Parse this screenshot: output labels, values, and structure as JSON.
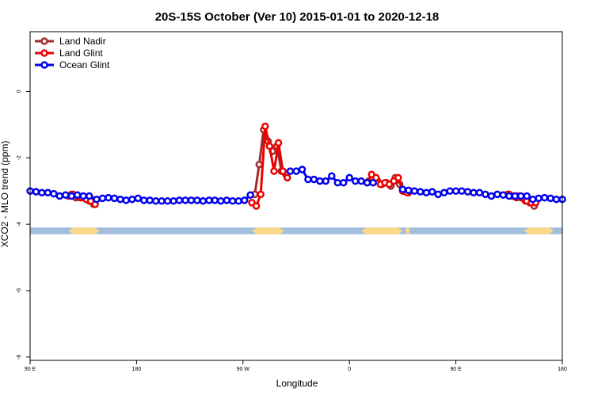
{
  "chart_data": {
    "type": "line",
    "title": "20S-15S October (Ver 10)   2015-01-01 to 2020-12-18",
    "xlabel": "Longitude",
    "ylabel": "XCO2 - MLO trend (ppm)",
    "xlim": [
      -90,
      270
    ],
    "ylim": [
      -8.1,
      1.8
    ],
    "x_ticks": [
      {
        "value": -90,
        "label": "90 E"
      },
      {
        "value": -18,
        "label": "180"
      },
      {
        "value": 54,
        "label": "90 W"
      },
      {
        "value": 126,
        "label": "0"
      },
      {
        "value": 198,
        "label": "90 E"
      },
      {
        "value": 270,
        "label": "180"
      }
    ],
    "y_ticks": [
      {
        "value": 0,
        "label": "0"
      },
      {
        "value": -2,
        "label": "-2"
      },
      {
        "value": -4,
        "label": "-4"
      },
      {
        "value": -6,
        "label": "-6"
      },
      {
        "value": -8,
        "label": "-8"
      }
    ],
    "grid": false,
    "legend_position": "top-left",
    "surface_band": {
      "y_range": [
        -4.1,
        -4.3
      ],
      "ocean_color": "#a3bddc",
      "land_color": "#fcd88a",
      "land_segments": [
        [
          -64,
          -43
        ],
        [
          60,
          82
        ],
        [
          134,
          162
        ],
        [
          164,
          167
        ],
        [
          244,
          264
        ]
      ]
    },
    "series": [
      {
        "name": "Land Nadir",
        "color": "#a52a2a",
        "x": [
          -62,
          -59,
          -56,
          -53,
          -50,
          -47,
          62,
          65,
          68,
          71,
          74,
          77,
          80,
          83,
          139,
          142,
          145,
          148,
          151,
          154,
          157,
          160,
          163,
          166,
          233,
          236,
          239,
          242,
          245,
          248,
          251
        ],
        "y": [
          -3.1,
          -3.2,
          -3.2,
          -3.2,
          -3.3,
          -3.4,
          -3.1,
          -2.2,
          -1.15,
          -1.5,
          -1.8,
          -1.65,
          -2.4,
          -2.5,
          -2.7,
          -2.65,
          -2.7,
          -2.8,
          -2.75,
          -2.85,
          -2.6,
          -2.8,
          -3.0,
          -3.05,
          -3.1,
          -3.15,
          -3.2,
          -3.2,
          -3.3,
          -3.35,
          -3.45
        ]
      },
      {
        "name": "Land Glint",
        "color": "#ee0000",
        "x": [
          -64,
          -61,
          -58,
          -55,
          -52,
          -49,
          -46,
          60,
          63,
          66,
          69,
          72,
          75,
          78,
          81,
          84,
          138,
          141,
          144,
          147,
          150,
          153,
          156,
          159,
          162,
          165,
          234,
          237,
          240,
          243,
          246,
          249,
          252
        ],
        "y": [
          -3.15,
          -3.1,
          -3.15,
          -3.2,
          -3.25,
          -3.3,
          -3.4,
          -3.35,
          -3.45,
          -3.1,
          -1.05,
          -1.65,
          -2.4,
          -1.55,
          -2.4,
          -2.6,
          -2.75,
          -2.5,
          -2.6,
          -2.8,
          -2.75,
          -2.8,
          -2.7,
          -2.6,
          -3.0,
          -3.05,
          -3.1,
          -3.15,
          -3.15,
          -3.2,
          -3.3,
          -3.35,
          -3.35
        ]
      },
      {
        "name": "Ocean Glint",
        "color": "#0000ee",
        "x": [
          -90,
          -86,
          -82,
          -78,
          -74,
          -70,
          -66,
          -62,
          -58,
          -54,
          -50,
          -45,
          -41,
          -37,
          -33,
          -29,
          -25,
          -21,
          -17,
          -13,
          -9,
          -5,
          -1,
          3,
          7,
          11,
          15,
          19,
          23,
          27,
          31,
          35,
          39,
          43,
          47,
          51,
          55,
          59,
          86,
          90,
          94,
          98,
          102,
          106,
          110,
          114,
          118,
          122,
          126,
          130,
          134,
          138,
          142,
          162,
          166,
          170,
          174,
          178,
          182,
          186,
          190,
          194,
          198,
          202,
          206,
          210,
          214,
          218,
          222,
          226,
          230,
          234,
          238,
          242,
          246,
          250,
          254,
          258,
          262,
          266,
          270
        ],
        "y": [
          -3.0,
          -3.02,
          -3.05,
          -3.05,
          -3.08,
          -3.15,
          -3.12,
          -3.15,
          -3.12,
          -3.15,
          -3.15,
          -3.25,
          -3.22,
          -3.2,
          -3.22,
          -3.25,
          -3.28,
          -3.25,
          -3.22,
          -3.28,
          -3.28,
          -3.3,
          -3.3,
          -3.3,
          -3.3,
          -3.28,
          -3.28,
          -3.28,
          -3.28,
          -3.3,
          -3.28,
          -3.28,
          -3.3,
          -3.28,
          -3.3,
          -3.3,
          -3.28,
          -3.12,
          -2.4,
          -2.4,
          -2.35,
          -2.65,
          -2.65,
          -2.7,
          -2.7,
          -2.55,
          -2.75,
          -2.75,
          -2.6,
          -2.7,
          -2.7,
          -2.75,
          -2.75,
          -2.95,
          -2.98,
          -3.0,
          -3.02,
          -3.05,
          -3.02,
          -3.1,
          -3.05,
          -3.0,
          -3.0,
          -3.0,
          -3.02,
          -3.05,
          -3.05,
          -3.1,
          -3.15,
          -3.1,
          -3.12,
          -3.15,
          -3.15,
          -3.15,
          -3.15,
          -3.25,
          -3.22,
          -3.2,
          -3.22,
          -3.25,
          -3.25
        ]
      }
    ]
  }
}
